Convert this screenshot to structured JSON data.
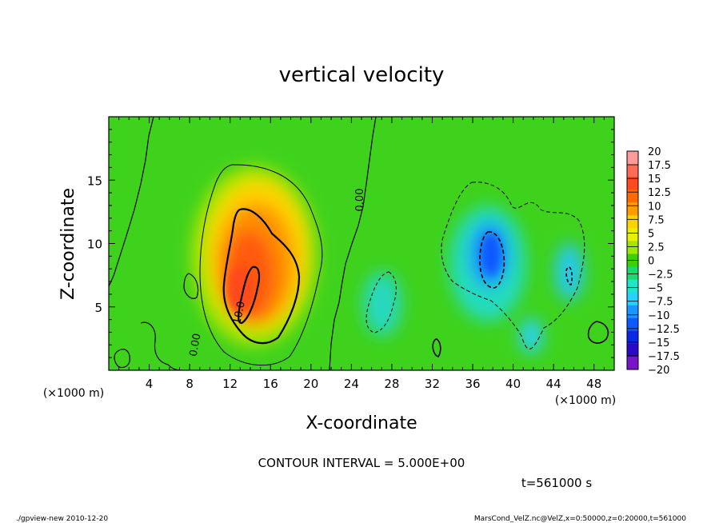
{
  "chart_data": {
    "type": "heatmap",
    "title": "vertical velocity",
    "xlabel": "X-coordinate",
    "ylabel": "Z-coordinate",
    "x_unit": "(×1000 m)",
    "y_unit": "(×1000 m)",
    "xlim": [
      0,
      50
    ],
    "ylim": [
      0,
      20
    ],
    "x_ticks": [
      4,
      8,
      12,
      16,
      20,
      24,
      28,
      32,
      36,
      40,
      44,
      48
    ],
    "y_ticks": [
      5,
      10,
      15
    ],
    "colorbar": {
      "levels": [
        20,
        17.5,
        15,
        12.5,
        10,
        7.5,
        5,
        2.5,
        0,
        -2.5,
        -5,
        -7.5,
        -10,
        -12.5,
        -15,
        -17.5,
        -20
      ],
      "labels": [
        "20",
        "17.5",
        "15",
        "12.5",
        "10",
        "7.5",
        "5",
        "2.5",
        "0",
        "−2.5",
        "−5",
        "−7.5",
        "−10",
        "−12.5",
        "−15",
        "−17.5",
        "−20"
      ],
      "colors": [
        "#ff9a9a",
        "#ff6c56",
        "#ff4a1e",
        "#ff6a00",
        "#ff9c00",
        "#ffd200",
        "#e8f000",
        "#9ee800",
        "#3cd200",
        "#18dc6e",
        "#1ee6c8",
        "#28d2ff",
        "#1a96ff",
        "#0a5aff",
        "#0a28e6",
        "#2a0ac8",
        "#7a14c8"
      ]
    },
    "features": [
      {
        "name": "updraft",
        "x": 14.5,
        "z": 8.0,
        "peak": 14
      },
      {
        "name": "downdraft",
        "x": 38.5,
        "z": 9.0,
        "peak": -12
      },
      {
        "name": "downdraft",
        "x": 27.0,
        "z": 5.5,
        "peak": -6
      },
      {
        "name": "downdraft",
        "x": 46.0,
        "z": 8.0,
        "peak": -9
      }
    ],
    "contour_labels": [
      "0.00",
      "10.0",
      "0.00"
    ],
    "annotation": "CONTOUR INTERVAL = 5.000E+00",
    "time_label": "t=561000 s"
  },
  "footer": {
    "left": "./gpview-new  2010-12-20",
    "right": "MarsCond_VelZ.nc@VelZ,x=0:50000,z=0:20000,t=561000"
  }
}
